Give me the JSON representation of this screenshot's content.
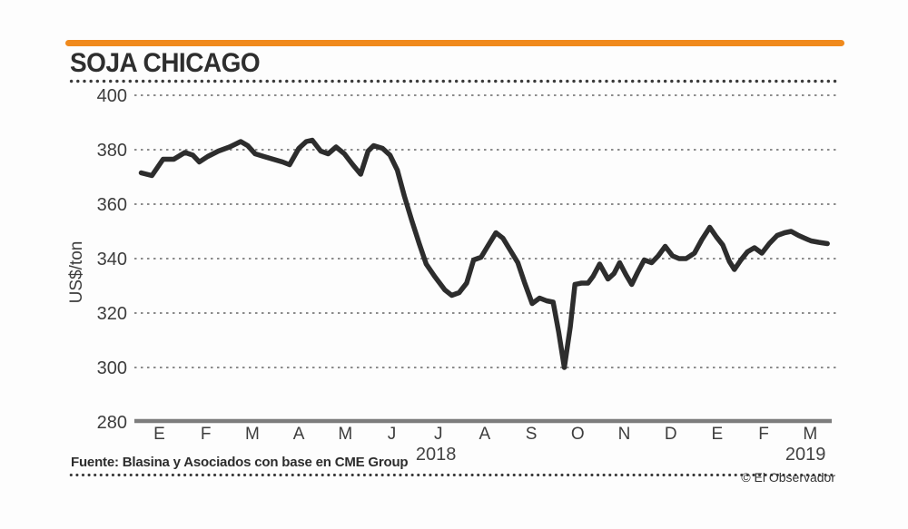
{
  "header": {
    "title": "SOJA CHICAGO"
  },
  "footer": {
    "source": "Fuente: Blasina y Asociados con base en CME Group",
    "credit": "© El Observador"
  },
  "colors": {
    "accent_orange": "#f08a1d",
    "line": "#2d2d2d",
    "grid": "#8c8c8c",
    "axis": "#7d7d7d",
    "tick_text": "#3d3d3d",
    "year_text": "#424242"
  },
  "chart_data": {
    "type": "line",
    "title": "SOJA CHICAGO",
    "ylabel": "US$/ton",
    "ylim": [
      280,
      400
    ],
    "yticks": [
      280,
      300,
      320,
      340,
      360,
      380,
      400
    ],
    "grid": "horizontal dashed, solid baseline at 280",
    "legend": "none",
    "x_axis": {
      "unit": "months from January 2018 tick",
      "month_ticks": [
        "E",
        "F",
        "M",
        "A",
        "M",
        "J",
        "J",
        "A",
        "S",
        "O",
        "N",
        "D",
        "E",
        "F",
        "M"
      ],
      "years": [
        {
          "label": "2018",
          "position": 5.95
        },
        {
          "label": "2019",
          "position": 13.9
        }
      ]
    },
    "series": [
      {
        "name": "Soja Chicago (US$/ton)",
        "points": [
          [
            -0.39,
            371.5
          ],
          [
            -0.16,
            370.5
          ],
          [
            0.08,
            376.5
          ],
          [
            0.31,
            376.5
          ],
          [
            0.55,
            379
          ],
          [
            0.72,
            378
          ],
          [
            0.86,
            375.5
          ],
          [
            1.04,
            377.5
          ],
          [
            1.27,
            379.5
          ],
          [
            1.51,
            381
          ],
          [
            1.75,
            383
          ],
          [
            1.9,
            381.5
          ],
          [
            2.06,
            378.5
          ],
          [
            2.25,
            377.5
          ],
          [
            2.45,
            376.5
          ],
          [
            2.65,
            375.5
          ],
          [
            2.8,
            374.5
          ],
          [
            3.0,
            380.5
          ],
          [
            3.16,
            383
          ],
          [
            3.29,
            383.5
          ],
          [
            3.47,
            379.5
          ],
          [
            3.63,
            378.5
          ],
          [
            3.8,
            381
          ],
          [
            3.98,
            378.5
          ],
          [
            4.16,
            374.5
          ],
          [
            4.33,
            371
          ],
          [
            4.49,
            379.5
          ],
          [
            4.61,
            381.5
          ],
          [
            4.8,
            380.5
          ],
          [
            4.96,
            378
          ],
          [
            5.12,
            372.5
          ],
          [
            5.27,
            363
          ],
          [
            5.43,
            354
          ],
          [
            5.59,
            345.5
          ],
          [
            5.74,
            338
          ],
          [
            5.92,
            333.5
          ],
          [
            6.14,
            328.5
          ],
          [
            6.29,
            326.5
          ],
          [
            6.45,
            327.5
          ],
          [
            6.61,
            331
          ],
          [
            6.76,
            339.5
          ],
          [
            6.92,
            340.5
          ],
          [
            7.06,
            344.5
          ],
          [
            7.24,
            349.5
          ],
          [
            7.39,
            347.5
          ],
          [
            7.55,
            343
          ],
          [
            7.71,
            338.5
          ],
          [
            7.86,
            331
          ],
          [
            8.02,
            323.5
          ],
          [
            8.18,
            325.5
          ],
          [
            8.33,
            324.5
          ],
          [
            8.47,
            324
          ],
          [
            8.59,
            313
          ],
          [
            8.71,
            300
          ],
          [
            8.84,
            315
          ],
          [
            8.94,
            330.5
          ],
          [
            9.08,
            331
          ],
          [
            9.22,
            331
          ],
          [
            9.33,
            333.5
          ],
          [
            9.47,
            338
          ],
          [
            9.65,
            332.5
          ],
          [
            9.78,
            334.5
          ],
          [
            9.9,
            338.5
          ],
          [
            10.04,
            334
          ],
          [
            10.16,
            330.5
          ],
          [
            10.29,
            335
          ],
          [
            10.43,
            339.5
          ],
          [
            10.59,
            338.5
          ],
          [
            10.73,
            341
          ],
          [
            10.88,
            344.5
          ],
          [
            11.04,
            341
          ],
          [
            11.18,
            340
          ],
          [
            11.33,
            340
          ],
          [
            11.51,
            342
          ],
          [
            11.67,
            347
          ],
          [
            11.84,
            351.5
          ],
          [
            11.98,
            348
          ],
          [
            12.12,
            345
          ],
          [
            12.26,
            339
          ],
          [
            12.37,
            336
          ],
          [
            12.51,
            339.5
          ],
          [
            12.65,
            342.5
          ],
          [
            12.8,
            344
          ],
          [
            12.96,
            342
          ],
          [
            13.12,
            345.5
          ],
          [
            13.29,
            348.5
          ],
          [
            13.45,
            349.5
          ],
          [
            13.59,
            350
          ],
          [
            13.75,
            348.5
          ],
          [
            13.88,
            347.5
          ],
          [
            14.02,
            346.5
          ],
          [
            14.18,
            346
          ],
          [
            14.37,
            345.5
          ]
        ]
      }
    ]
  }
}
